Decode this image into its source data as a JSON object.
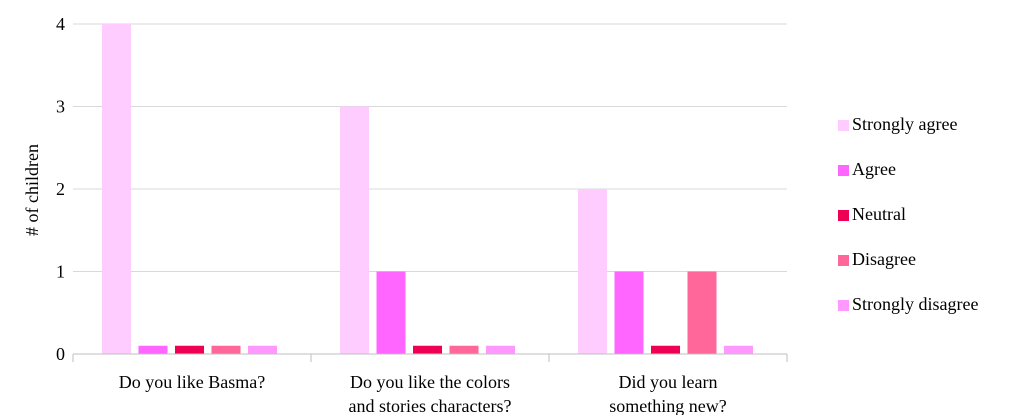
{
  "chart_data": {
    "type": "bar",
    "title": "",
    "xlabel": "",
    "ylabel": "# of children",
    "ylim": [
      0,
      4
    ],
    "yticks": [
      0,
      1,
      2,
      3,
      4
    ],
    "grid": true,
    "legend_position": "right",
    "categories": [
      [
        "Do you like Basma?"
      ],
      [
        "Do you like the colors",
        "and stories characters?"
      ],
      [
        "Did you learn",
        "something new?"
      ]
    ],
    "series": [
      {
        "name": "Strongly agree",
        "color": "#ffccff",
        "values": [
          4,
          3,
          2
        ]
      },
      {
        "name": "Agree",
        "color": "#ff66ff",
        "values": [
          0.1,
          1,
          1
        ]
      },
      {
        "name": "Neutral",
        "color": "#ee0055",
        "values": [
          0.1,
          0.1,
          0.1
        ]
      },
      {
        "name": "Disagree",
        "color": "#ff6699",
        "values": [
          0.1,
          0.1,
          1
        ]
      },
      {
        "name": "Strongly disagree",
        "color": "#ff99ff",
        "values": [
          0.1,
          0.1,
          0.1
        ]
      }
    ]
  }
}
